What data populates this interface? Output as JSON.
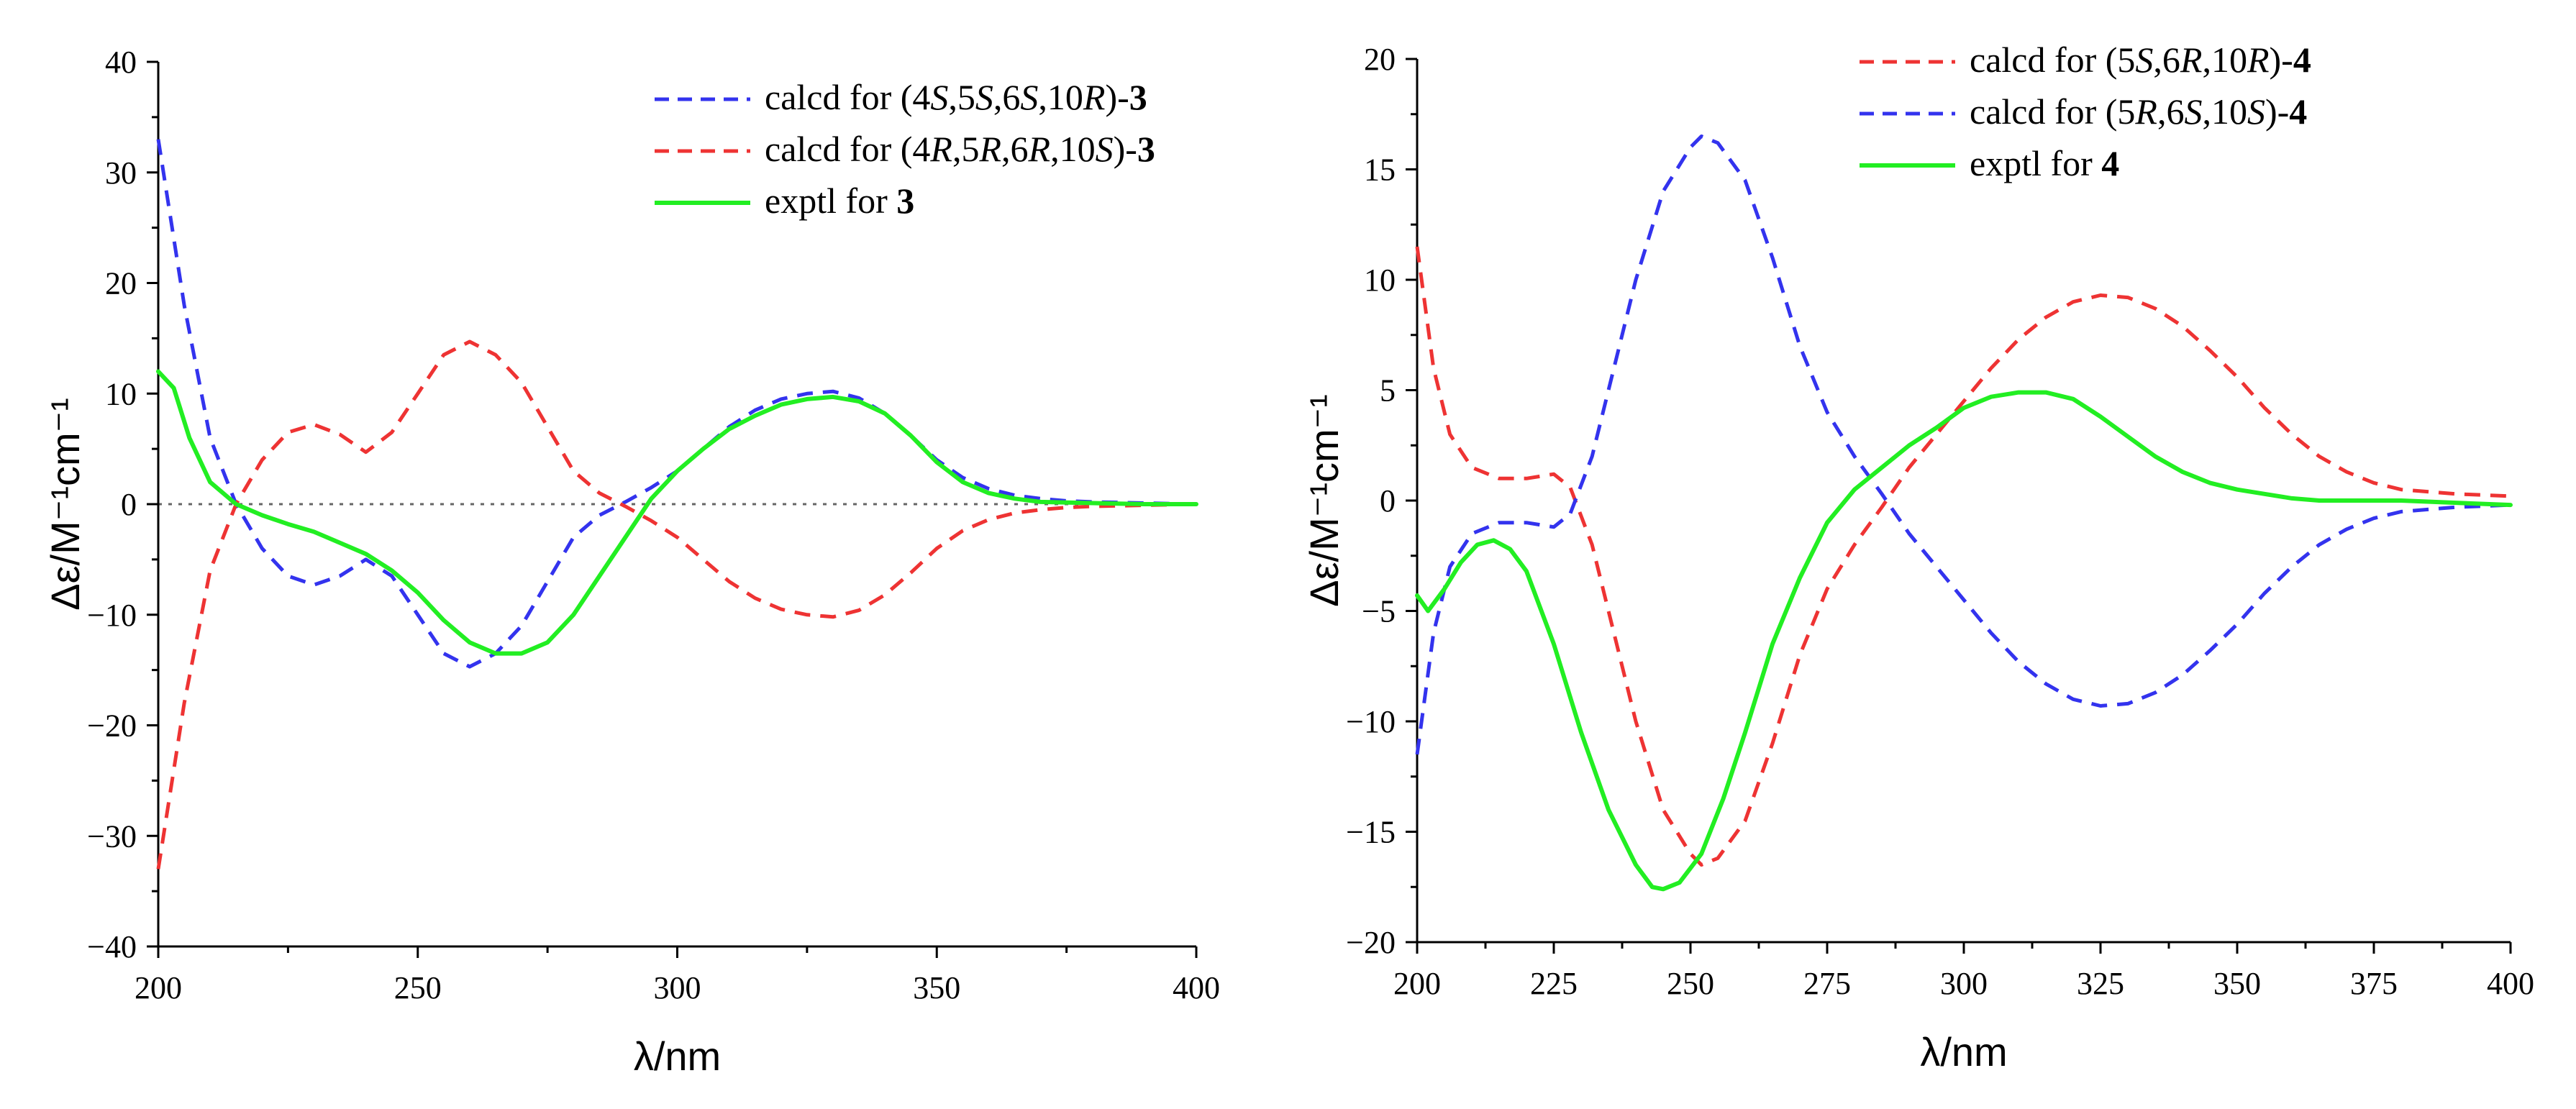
{
  "chart_data": [
    {
      "type": "line",
      "panel": "left",
      "title": "",
      "xlabel": "λ/nm",
      "ylabel": "Δε/M⁻¹cm⁻¹",
      "xlim": [
        200,
        400
      ],
      "ylim": [
        -40,
        40
      ],
      "x_ticks": [
        200,
        250,
        300,
        350,
        400
      ],
      "x_tick_labels": [
        "200",
        "250",
        "300",
        "350",
        "400"
      ],
      "y_ticks": [
        -40,
        -30,
        -20,
        -10,
        0,
        10,
        20,
        30,
        40
      ],
      "y_tick_labels": [
        "−40",
        "−30",
        "−20",
        "−10",
        "0",
        "10",
        "20",
        "30",
        "40"
      ],
      "zero_line": true,
      "legend_position": "top-right",
      "series": [
        {
          "name": "calcd for (4S,5S,6S,10R)-3",
          "legend_parts": [
            {
              "t": "calcd for (4",
              "s": "n"
            },
            {
              "t": "S",
              "s": "i"
            },
            {
              "t": ",5",
              "s": "n"
            },
            {
              "t": "S",
              "s": "i"
            },
            {
              "t": ",6",
              "s": "n"
            },
            {
              "t": "S",
              "s": "i"
            },
            {
              "t": ",10",
              "s": "n"
            },
            {
              "t": "R",
              "s": "i"
            },
            {
              "t": ")-",
              "s": "n"
            },
            {
              "t": "3",
              "s": "b"
            }
          ],
          "color": "#3333ee",
          "style": "dashed",
          "x": [
            200,
            205,
            210,
            215,
            220,
            225,
            230,
            235,
            240,
            245,
            250,
            255,
            260,
            265,
            270,
            275,
            280,
            285,
            290,
            295,
            300,
            305,
            310,
            315,
            320,
            325,
            330,
            335,
            340,
            345,
            350,
            355,
            360,
            365,
            370,
            375,
            380,
            390,
            400
          ],
          "y": [
            33,
            18,
            6,
            0,
            -4,
            -6.5,
            -7.3,
            -6.5,
            -5,
            -6.5,
            -10,
            -13.5,
            -14.7,
            -13.5,
            -11,
            -7,
            -3,
            -1,
            0.2,
            1.5,
            3,
            5,
            7,
            8.5,
            9.5,
            10,
            10.2,
            9.6,
            8.2,
            6.2,
            4,
            2.4,
            1.4,
            0.8,
            0.5,
            0.3,
            0.2,
            0.1,
            0
          ]
        },
        {
          "name": "calcd for (4R,5R,6R,10S)-3",
          "legend_parts": [
            {
              "t": "calcd for (4",
              "s": "n"
            },
            {
              "t": "R",
              "s": "i"
            },
            {
              "t": ",5",
              "s": "n"
            },
            {
              "t": "R",
              "s": "i"
            },
            {
              "t": ",6",
              "s": "n"
            },
            {
              "t": "R",
              "s": "i"
            },
            {
              "t": ",10",
              "s": "n"
            },
            {
              "t": "S",
              "s": "i"
            },
            {
              "t": ")-",
              "s": "n"
            },
            {
              "t": "3",
              "s": "b"
            }
          ],
          "color": "#ee3333",
          "style": "dashed",
          "x": [
            200,
            205,
            210,
            215,
            220,
            225,
            230,
            235,
            240,
            245,
            250,
            255,
            260,
            265,
            270,
            275,
            280,
            285,
            290,
            295,
            300,
            305,
            310,
            315,
            320,
            325,
            330,
            335,
            340,
            345,
            350,
            355,
            360,
            365,
            370,
            375,
            380,
            390,
            400
          ],
          "y": [
            -33,
            -18,
            -6,
            0,
            4,
            6.5,
            7.2,
            6.3,
            4.7,
            6.5,
            10,
            13.5,
            14.7,
            13.5,
            11,
            7,
            3,
            1,
            -0.2,
            -1.5,
            -3,
            -5,
            -7,
            -8.5,
            -9.5,
            -10,
            -10.2,
            -9.6,
            -8.2,
            -6.2,
            -4,
            -2.4,
            -1.4,
            -0.8,
            -0.5,
            -0.3,
            -0.2,
            -0.1,
            0
          ]
        },
        {
          "name": "exptl for 3",
          "legend_parts": [
            {
              "t": "exptl for ",
              "s": "n"
            },
            {
              "t": "3",
              "s": "b"
            }
          ],
          "color": "#22ee22",
          "style": "solid",
          "x": [
            200,
            203,
            206,
            210,
            215,
            220,
            225,
            230,
            235,
            240,
            245,
            250,
            255,
            260,
            265,
            270,
            275,
            280,
            285,
            290,
            295,
            300,
            305,
            310,
            315,
            320,
            325,
            330,
            335,
            340,
            345,
            350,
            355,
            360,
            365,
            370,
            380,
            390,
            400
          ],
          "y": [
            12,
            10.5,
            6,
            2,
            0,
            -1,
            -1.8,
            -2.5,
            -3.5,
            -4.5,
            -6,
            -8,
            -10.5,
            -12.5,
            -13.5,
            -13.5,
            -12.5,
            -10,
            -6.5,
            -3,
            0.5,
            3,
            5,
            6.8,
            8,
            9,
            9.5,
            9.7,
            9.3,
            8.2,
            6.2,
            3.8,
            2,
            1,
            0.5,
            0.2,
            0.1,
            0,
            0
          ]
        }
      ]
    },
    {
      "type": "line",
      "panel": "right",
      "title": "",
      "xlabel": "λ/nm",
      "ylabel": "Δε/M⁻¹cm⁻¹",
      "xlim": [
        200,
        400
      ],
      "ylim": [
        -20,
        20
      ],
      "x_ticks": [
        200,
        225,
        250,
        275,
        300,
        325,
        350,
        375,
        400
      ],
      "x_tick_labels": [
        "200",
        "225",
        "250",
        "275",
        "300",
        "325",
        "350",
        "375",
        "400"
      ],
      "y_ticks": [
        -20,
        -15,
        -10,
        -5,
        0,
        5,
        10,
        15,
        20
      ],
      "y_tick_labels": [
        "−20",
        "−15",
        "−10",
        "−5",
        "0",
        "5",
        "10",
        "15",
        "20"
      ],
      "zero_line": false,
      "legend_position": "top-right",
      "series": [
        {
          "name": "calcd for (5S,6R,10R)-4",
          "legend_parts": [
            {
              "t": "calcd for (5",
              "s": "n"
            },
            {
              "t": "S",
              "s": "i"
            },
            {
              "t": ",6",
              "s": "n"
            },
            {
              "t": "R",
              "s": "i"
            },
            {
              "t": ",10",
              "s": "n"
            },
            {
              "t": "R",
              "s": "i"
            },
            {
              "t": ")-",
              "s": "n"
            },
            {
              "t": "4",
              "s": "b"
            }
          ],
          "color": "#ee3333",
          "style": "dashed",
          "x": [
            200,
            203,
            206,
            210,
            215,
            220,
            225,
            228,
            232,
            236,
            240,
            245,
            250,
            252,
            255,
            260,
            265,
            270,
            275,
            280,
            285,
            290,
            295,
            300,
            305,
            310,
            315,
            320,
            325,
            330,
            335,
            340,
            345,
            350,
            355,
            360,
            365,
            370,
            375,
            380,
            390,
            400
          ],
          "y": [
            11.5,
            6,
            3,
            1.5,
            1,
            1,
            1.2,
            0.6,
            -2,
            -6,
            -10,
            -14,
            -16,
            -16.5,
            -16.2,
            -14.5,
            -11,
            -7,
            -4,
            -2,
            -0.3,
            1.5,
            3,
            4.5,
            6,
            7.3,
            8.3,
            9,
            9.3,
            9.2,
            8.7,
            7.9,
            6.8,
            5.6,
            4.2,
            3,
            2,
            1.3,
            0.8,
            0.5,
            0.3,
            0.2
          ]
        },
        {
          "name": "calcd for (5R,6S,10S)-4",
          "legend_parts": [
            {
              "t": "calcd for (5",
              "s": "n"
            },
            {
              "t": "R",
              "s": "i"
            },
            {
              "t": ",6",
              "s": "n"
            },
            {
              "t": "S",
              "s": "i"
            },
            {
              "t": ",10",
              "s": "n"
            },
            {
              "t": "S",
              "s": "i"
            },
            {
              "t": ")-",
              "s": "n"
            },
            {
              "t": "4",
              "s": "b"
            }
          ],
          "color": "#3333ee",
          "style": "dashed",
          "x": [
            200,
            203,
            206,
            210,
            215,
            220,
            225,
            228,
            232,
            236,
            240,
            245,
            250,
            252,
            255,
            260,
            265,
            270,
            275,
            280,
            285,
            290,
            295,
            300,
            305,
            310,
            315,
            320,
            325,
            330,
            335,
            340,
            345,
            350,
            355,
            360,
            365,
            370,
            375,
            380,
            390,
            400
          ],
          "y": [
            -11.5,
            -6,
            -3,
            -1.5,
            -1,
            -1,
            -1.2,
            -0.6,
            2,
            6,
            10,
            14,
            16,
            16.5,
            16.2,
            14.5,
            11,
            7,
            4,
            2,
            0.3,
            -1.5,
            -3,
            -4.5,
            -6,
            -7.3,
            -8.3,
            -9,
            -9.3,
            -9.2,
            -8.7,
            -7.9,
            -6.8,
            -5.6,
            -4.2,
            -3,
            -2,
            -1.3,
            -0.8,
            -0.5,
            -0.3,
            -0.2
          ]
        },
        {
          "name": "exptl for 4",
          "legend_parts": [
            {
              "t": "exptl for ",
              "s": "n"
            },
            {
              "t": "4",
              "s": "b"
            }
          ],
          "color": "#22ee22",
          "style": "solid",
          "x": [
            200,
            202,
            205,
            208,
            211,
            214,
            217,
            220,
            225,
            230,
            235,
            240,
            243,
            245,
            248,
            252,
            256,
            260,
            265,
            270,
            275,
            280,
            285,
            290,
            295,
            300,
            305,
            310,
            315,
            320,
            325,
            330,
            335,
            340,
            345,
            350,
            355,
            360,
            365,
            370,
            380,
            390,
            400
          ],
          "y": [
            -4.3,
            -5,
            -4,
            -2.8,
            -2,
            -1.8,
            -2.2,
            -3.2,
            -6.5,
            -10.5,
            -14,
            -16.5,
            -17.5,
            -17.6,
            -17.3,
            -16,
            -13.5,
            -10.5,
            -6.5,
            -3.5,
            -1,
            0.5,
            1.5,
            2.5,
            3.3,
            4.2,
            4.7,
            4.9,
            4.9,
            4.6,
            3.8,
            2.9,
            2,
            1.3,
            0.8,
            0.5,
            0.3,
            0.1,
            0,
            0,
            0,
            -0.1,
            -0.2
          ]
        }
      ]
    }
  ]
}
